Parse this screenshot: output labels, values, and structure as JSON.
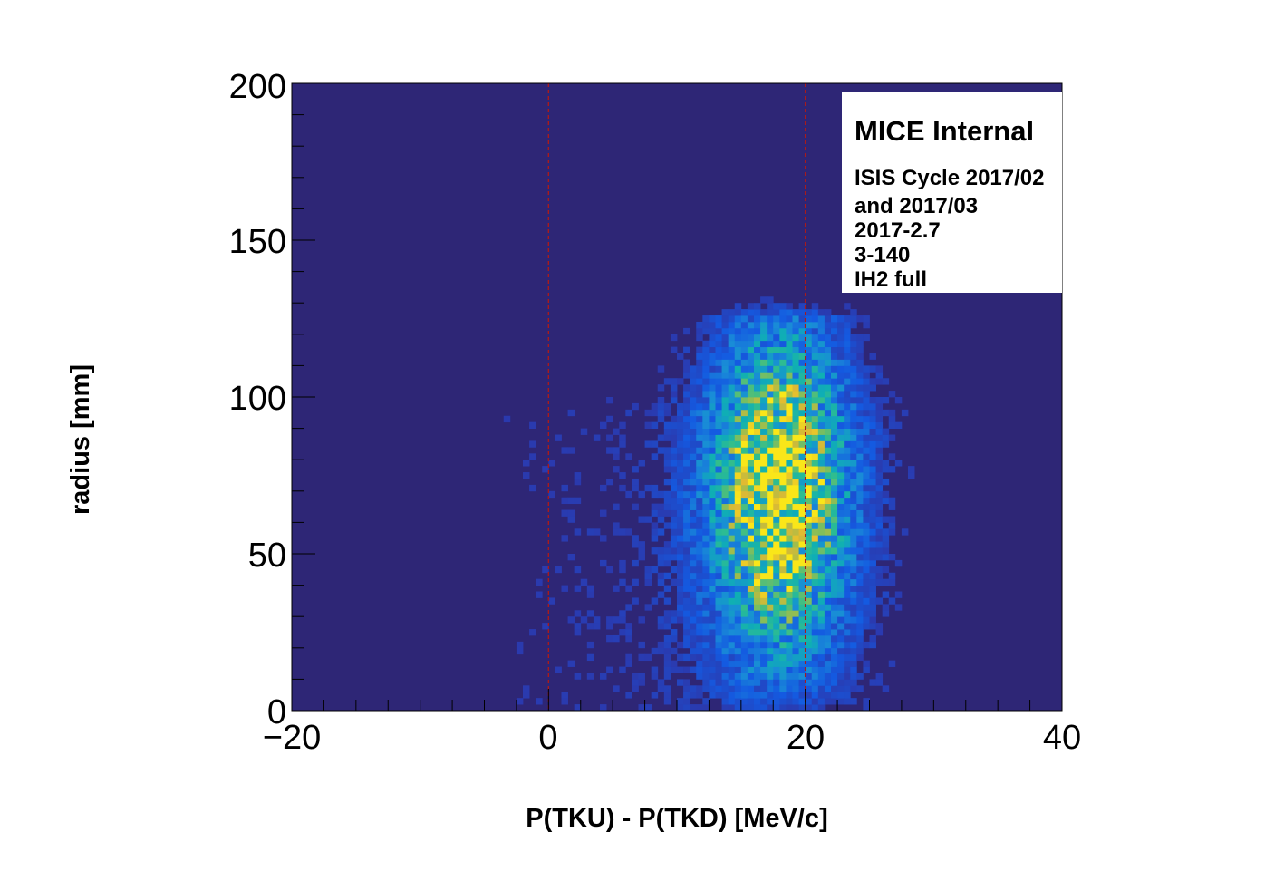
{
  "chart_data": {
    "type": "heatmap",
    "xlabel": "P(TKU) - P(TKD) [MeV/c]",
    "ylabel": "radius [mm]",
    "xlim": [
      -20,
      40
    ],
    "ylim": [
      0,
      200
    ],
    "x_ticks": [
      "−20",
      "0",
      "20",
      "40"
    ],
    "y_ticks": [
      "0",
      "50",
      "100",
      "150",
      "200"
    ],
    "x_bin_width": 0.5,
    "y_bin_width": 2,
    "colormap": "parula",
    "background_color": "#2e2676",
    "reference_lines": [
      {
        "x": 0,
        "color": "#aa1a1a",
        "style": "dashed"
      },
      {
        "x": 20,
        "color": "#aa1a1a",
        "style": "dashed"
      }
    ],
    "distribution": {
      "core": {
        "x_mean": 18,
        "x_sigma": 3.6,
        "r_peak": 70,
        "r_sigma": 36,
        "r_max": 125,
        "relative_peak": 1.0
      },
      "tail": {
        "x_mean": 11,
        "x_sigma": 13,
        "relative_peak": 0.06
      }
    },
    "legend": {
      "placement": "top-right",
      "heading": "MICE Internal",
      "lines": [
        "ISIS Cycle 2017/02",
        "and 2017/03",
        "2017-2.7",
        "3-140",
        "IH2 full"
      ]
    }
  }
}
